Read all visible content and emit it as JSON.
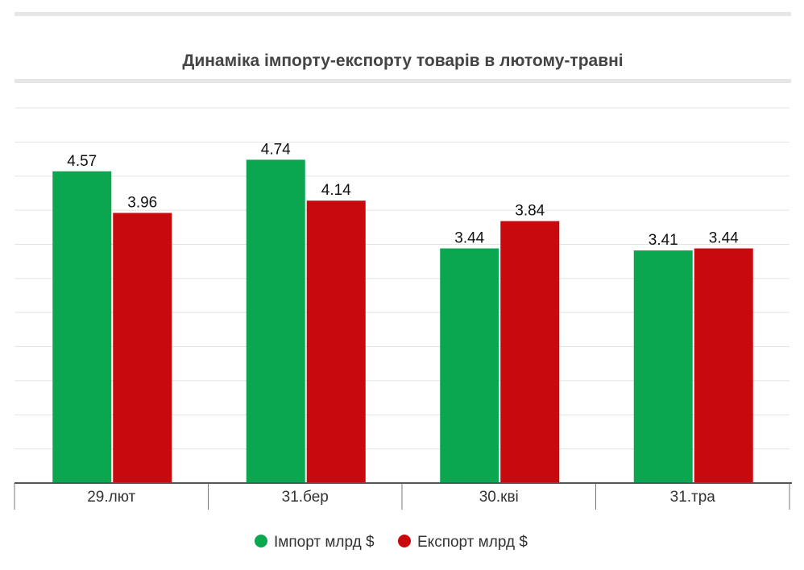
{
  "chart_data": {
    "type": "bar",
    "title": "Динаміка імпорту-експорту товарів в лютому-травні",
    "categories": [
      "29.лют",
      "31.бер",
      "30.кві",
      "31.тра"
    ],
    "series": [
      {
        "name": "Імпорт млрд $",
        "color": "#0aa650",
        "values": [
          4.57,
          4.74,
          3.44,
          3.41
        ]
      },
      {
        "name": "Експорт млрд $",
        "color": "#c8090e",
        "values": [
          3.96,
          4.14,
          3.84,
          3.44
        ]
      }
    ],
    "xlabel": "",
    "ylabel": "",
    "ylim": [
      0,
      5.5
    ],
    "grid_step": 0.5,
    "grid": true,
    "legend": "bottom-center"
  }
}
